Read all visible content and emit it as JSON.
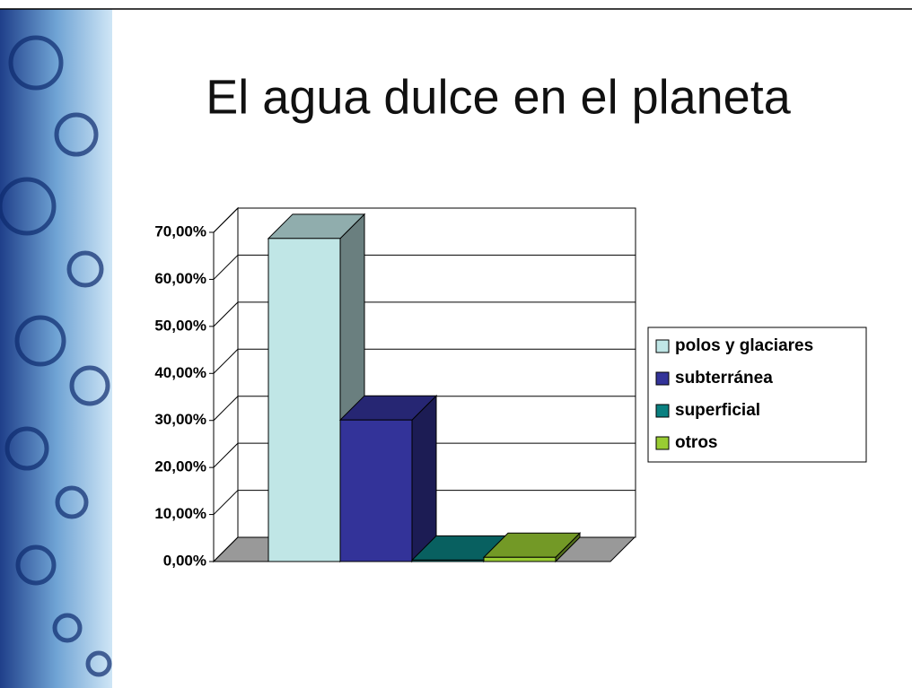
{
  "chart_data": {
    "type": "bar",
    "title": "El agua dulce en el planeta",
    "categories": [
      null
    ],
    "series": [
      {
        "name": "polos y glaciares",
        "color": "#c0e6e6",
        "values": [
          68.7
        ]
      },
      {
        "name": "subterránea",
        "color": "#333399",
        "values": [
          30.1
        ]
      },
      {
        "name": "superficial",
        "color": "#0a8080",
        "values": [
          0.3
        ]
      },
      {
        "name": "otros",
        "color": "#99cc33",
        "values": [
          0.9
        ]
      }
    ],
    "ylim": [
      0,
      70
    ],
    "yticks": [
      {
        "value": 0,
        "label": "0,00%"
      },
      {
        "value": 10,
        "label": "10,00%"
      },
      {
        "value": 20,
        "label": "20,00%"
      },
      {
        "value": 30,
        "label": "30,00%"
      },
      {
        "value": 40,
        "label": "40,00%"
      },
      {
        "value": 50,
        "label": "50,00%"
      },
      {
        "value": 60,
        "label": "60,00%"
      },
      {
        "value": 70,
        "label": "70,00%"
      }
    ],
    "grid": true,
    "legend": "right"
  }
}
